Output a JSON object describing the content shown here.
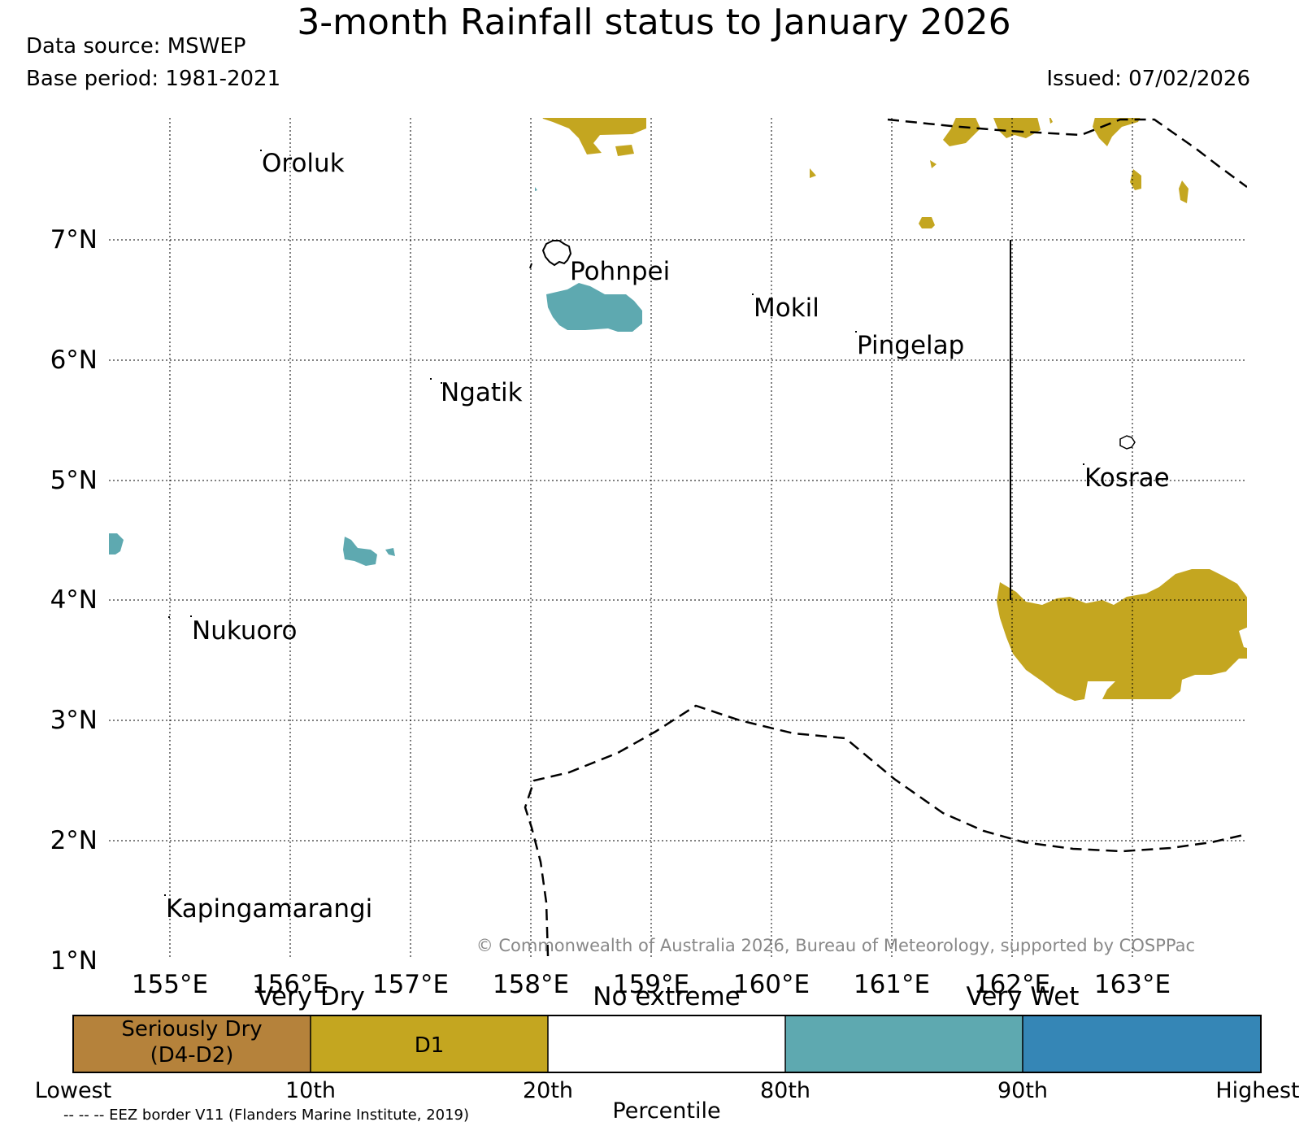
{
  "title": "3-month Rainfall status to January 2026",
  "data_source": "Data source: MSWEP",
  "base_period": "Base period: 1981-2021",
  "issued": "Issued: 07/02/2026",
  "copyright": "© Commonwealth of Australia 2026, Bureau of Meteorology, supported by COSPPac",
  "eez_note": "-- -- -- EEZ border V11 (Flanders Marine Institute, 2019)",
  "map": {
    "lat_labels": [
      "7°N",
      "6°N",
      "5°N",
      "4°N",
      "3°N",
      "2°N",
      "1°N"
    ],
    "lon_labels": [
      "155°E",
      "156°E",
      "157°E",
      "158°E",
      "159°E",
      "160°E",
      "161°E",
      "162°E",
      "163°E"
    ],
    "places": [
      "Oroluk",
      "Pohnpei",
      "Mokil",
      "Pingelap",
      "Ngatik",
      "Kosrae",
      "Nukuoro",
      "Kapingamarangi"
    ]
  },
  "legend": {
    "group_labels": [
      "Very Dry",
      "No extreme",
      "Very Wet"
    ],
    "boxes": [
      {
        "line1": "Seriously Dry",
        "line2": "(D4-D2)",
        "color": "#b5823b"
      },
      {
        "line1": "D1",
        "line2": "",
        "color": "#c4a620"
      },
      {
        "line1": "",
        "line2": "",
        "color": "#ffffff"
      },
      {
        "line1": "",
        "line2": "",
        "color": "#5ea9b0"
      },
      {
        "line1": "",
        "line2": "",
        "color": "#3586b6"
      }
    ],
    "percentiles": [
      "Lowest",
      "10th",
      "20th",
      "80th",
      "90th",
      "Highest"
    ],
    "axis_label": "Percentile"
  },
  "colors": {
    "dry_d1": "#c4a620",
    "wet_80_90": "#5ea9b0",
    "border": "#000000"
  }
}
